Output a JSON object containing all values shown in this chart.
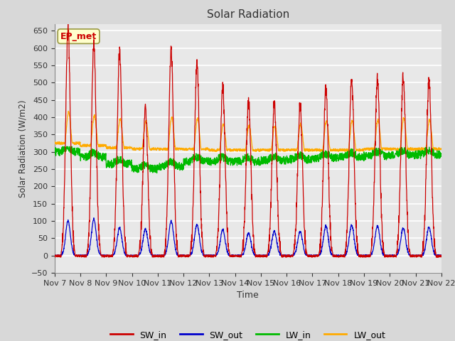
{
  "title": "Solar Radiation",
  "xlabel": "Time",
  "ylabel": "Solar Radiation (W/m2)",
  "ylim": [
    -50,
    670
  ],
  "yticks": [
    -50,
    0,
    50,
    100,
    150,
    200,
    250,
    300,
    350,
    400,
    450,
    500,
    550,
    600,
    650
  ],
  "fig_bg_color": "#d8d8d8",
  "plot_bg_color": "#e8e8e8",
  "grid_color": "#ffffff",
  "colors": {
    "SW_in": "#cc0000",
    "SW_out": "#0000cc",
    "LW_in": "#00bb00",
    "LW_out": "#ffaa00"
  },
  "annotation_text": "EP_met",
  "annotation_color": "#cc0000",
  "annotation_bg": "#ffffcc",
  "annotation_edge": "#999944",
  "n_days": 15,
  "pts_per_hour": 6,
  "start_day": 7,
  "sw_in_peaks": [
    650,
    610,
    590,
    420,
    590,
    555,
    490,
    445,
    440,
    435,
    480,
    510,
    510,
    520,
    510
  ],
  "sw_out_peaks": [
    100,
    105,
    80,
    75,
    100,
    90,
    75,
    65,
    70,
    70,
    85,
    88,
    85,
    80,
    82
  ],
  "lw_in_daily": [
    300,
    285,
    265,
    250,
    258,
    272,
    272,
    272,
    275,
    278,
    282,
    285,
    288,
    290,
    292
  ],
  "lw_out_peaks": [
    415,
    405,
    395,
    390,
    400,
    395,
    380,
    375,
    375,
    380,
    390,
    390,
    392,
    398,
    392
  ],
  "lw_out_nights": [
    325,
    318,
    312,
    308,
    308,
    308,
    305,
    305,
    305,
    305,
    305,
    305,
    308,
    308,
    308
  ]
}
